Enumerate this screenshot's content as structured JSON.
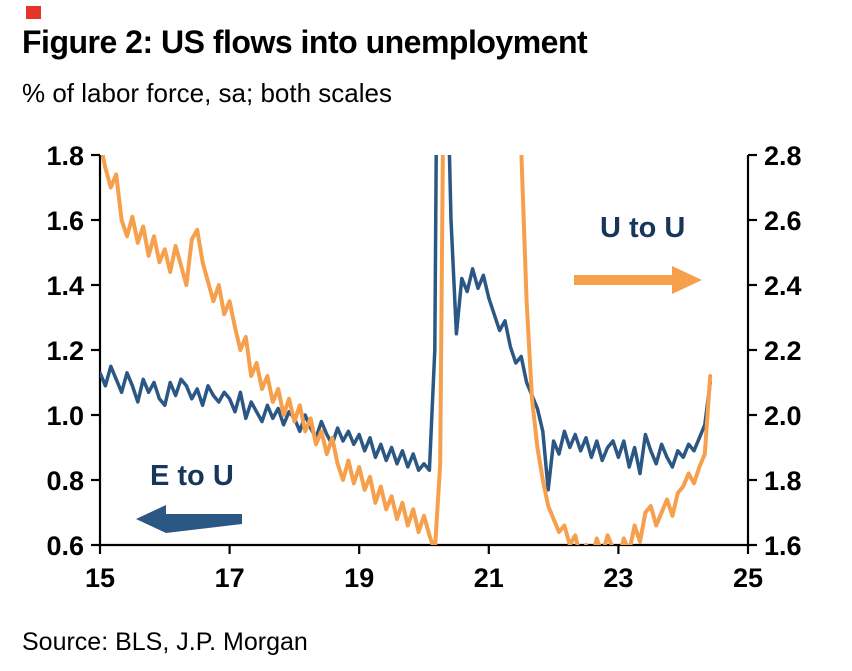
{
  "figure": {
    "title": "Figure 2: US flows into unemployment",
    "subtitle": "% of labor force, sa; both scales",
    "source": "Source: BLS, J.P. Morgan"
  },
  "series_labels": {
    "e_to_u": "E to U",
    "u_to_u": "U to U"
  },
  "colors": {
    "e_to_u_line": "#2b5784",
    "u_to_u_line": "#f6a04d",
    "series_label_text": "#17365c",
    "axis": "#000000",
    "corner_marker": "#e5342a"
  },
  "chart_data": {
    "type": "line",
    "title": "Figure 2: US flows into unemployment",
    "subtitle": "% of labor force, sa; both scales",
    "frequency": "monthly",
    "x_start": 2015,
    "x_step_years": 0.0833333333,
    "grid": false,
    "x_axis": {
      "range": [
        2015,
        2025
      ],
      "ticks": [
        2015,
        2017,
        2019,
        2021,
        2023,
        2025
      ],
      "tick_labels": [
        "15",
        "17",
        "19",
        "21",
        "23",
        "25"
      ]
    },
    "left_axis": {
      "label": "E to U (left scale)",
      "range": [
        0.6,
        1.8
      ],
      "ticks": [
        0.6,
        0.8,
        1.0,
        1.2,
        1.4,
        1.6,
        1.8
      ],
      "tick_labels": [
        "0.6",
        "0.8",
        "1.0",
        "1.2",
        "1.4",
        "1.6",
        "1.8"
      ]
    },
    "right_axis": {
      "label": "U to U (right scale)",
      "range": [
        1.6,
        2.8
      ],
      "ticks": [
        1.6,
        1.8,
        2.0,
        2.2,
        2.4,
        2.6,
        2.8
      ],
      "tick_labels": [
        "1.6",
        "1.8",
        "2.0",
        "2.2",
        "2.4",
        "2.6",
        "2.8"
      ]
    },
    "series": [
      {
        "name": "E to U",
        "axis": "left",
        "color": "#2b5784",
        "values": [
          1.13,
          1.09,
          1.15,
          1.11,
          1.07,
          1.13,
          1.09,
          1.04,
          1.11,
          1.07,
          1.1,
          1.05,
          1.03,
          1.1,
          1.06,
          1.11,
          1.09,
          1.05,
          1.08,
          1.03,
          1.09,
          1.06,
          1.04,
          1.07,
          1.05,
          1.01,
          1.07,
          0.99,
          1.04,
          1.01,
          0.98,
          1.03,
          0.99,
          1.02,
          0.97,
          1.01,
          0.99,
          0.95,
          1.0,
          0.96,
          0.93,
          0.98,
          0.94,
          0.91,
          0.96,
          0.92,
          0.95,
          0.91,
          0.94,
          0.89,
          0.93,
          0.87,
          0.91,
          0.86,
          0.9,
          0.85,
          0.89,
          0.84,
          0.88,
          0.83,
          0.85,
          0.83,
          1.2,
          3.5,
          2.3,
          1.6,
          1.25,
          1.42,
          1.38,
          1.45,
          1.39,
          1.43,
          1.36,
          1.31,
          1.26,
          1.29,
          1.21,
          1.16,
          1.18,
          1.1,
          1.06,
          1.02,
          0.95,
          0.77,
          0.92,
          0.88,
          0.95,
          0.9,
          0.94,
          0.89,
          0.93,
          0.87,
          0.92,
          0.86,
          0.9,
          0.92,
          0.87,
          0.92,
          0.84,
          0.9,
          0.82,
          0.94,
          0.89,
          0.85,
          0.91,
          0.87,
          0.84,
          0.89,
          0.87,
          0.91,
          0.89,
          0.93,
          0.97,
          1.1
        ]
      },
      {
        "name": "U to U",
        "axis": "right",
        "color": "#f6a04d",
        "values": [
          2.84,
          2.76,
          2.7,
          2.74,
          2.6,
          2.55,
          2.61,
          2.53,
          2.58,
          2.49,
          2.55,
          2.47,
          2.51,
          2.44,
          2.52,
          2.46,
          2.4,
          2.54,
          2.57,
          2.47,
          2.41,
          2.35,
          2.4,
          2.31,
          2.35,
          2.27,
          2.2,
          2.24,
          2.12,
          2.16,
          2.08,
          2.12,
          2.04,
          2.08,
          2.0,
          2.05,
          1.98,
          2.03,
          1.95,
          1.99,
          1.91,
          1.95,
          1.88,
          1.93,
          1.85,
          1.8,
          1.86,
          1.79,
          1.84,
          1.77,
          1.81,
          1.73,
          1.78,
          1.71,
          1.75,
          1.68,
          1.73,
          1.66,
          1.71,
          1.64,
          1.69,
          1.63,
          1.58,
          1.85,
          3.8,
          4.2,
          4.0,
          3.8,
          3.6,
          3.45,
          3.35,
          3.25,
          3.2,
          3.12,
          3.05,
          3.0,
          2.95,
          2.9,
          2.82,
          2.35,
          2.05,
          1.9,
          1.8,
          1.72,
          1.68,
          1.64,
          1.66,
          1.6,
          1.63,
          1.56,
          1.6,
          1.55,
          1.62,
          1.57,
          1.63,
          1.59,
          1.55,
          1.62,
          1.58,
          1.66,
          1.61,
          1.7,
          1.72,
          1.66,
          1.7,
          1.74,
          1.69,
          1.76,
          1.78,
          1.82,
          1.79,
          1.84,
          1.88,
          2.12
        ]
      }
    ],
    "annotations": [
      {
        "text": "E to U",
        "arrow": "left",
        "meaning": "read on left scale"
      },
      {
        "text": "U to U",
        "arrow": "right",
        "meaning": "read on right scale"
      }
    ]
  }
}
